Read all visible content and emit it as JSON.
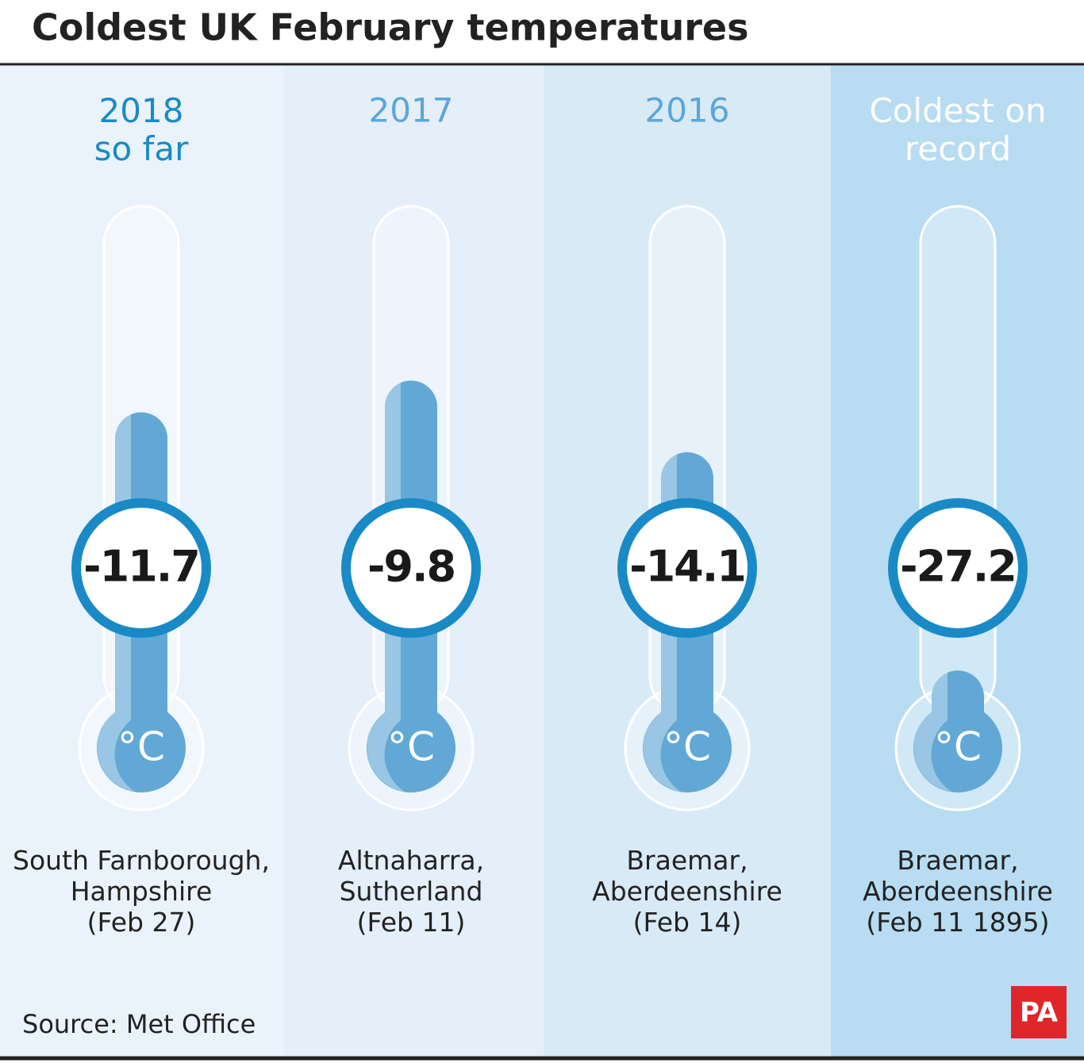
{
  "chart_data": {
    "type": "thermometer",
    "title": "Coldest UK February temperatures",
    "categories": [
      "2018\nso far",
      "2017",
      "2016",
      "Coldest on\nrecord"
    ],
    "values": [
      -11.7,
      -9.8,
      -14.1,
      -27.2
    ],
    "unit": "°C",
    "locations": [
      "South Farnborough,\nHampshire\n(Feb 27)",
      "Altnaharra,\nSutherland\n(Feb 11)",
      "Braemar,\nAberdeenshire\n(Feb 14)",
      "Braemar,\nAberdeenshire\n(Feb 11 1895)"
    ],
    "color": "#62a8d6",
    "column_colors": [
      "#eaf3fb",
      "#e4effa",
      "#d9eaf7",
      "#b8dcf1"
    ],
    "heading_colors": [
      "#1a8ac6",
      "#5aa6d9",
      "#5aa6d9",
      "#ffffff"
    ],
    "ylim": [
      -35,
      0
    ],
    "source": "Source: Met Office",
    "logo": "PA"
  }
}
